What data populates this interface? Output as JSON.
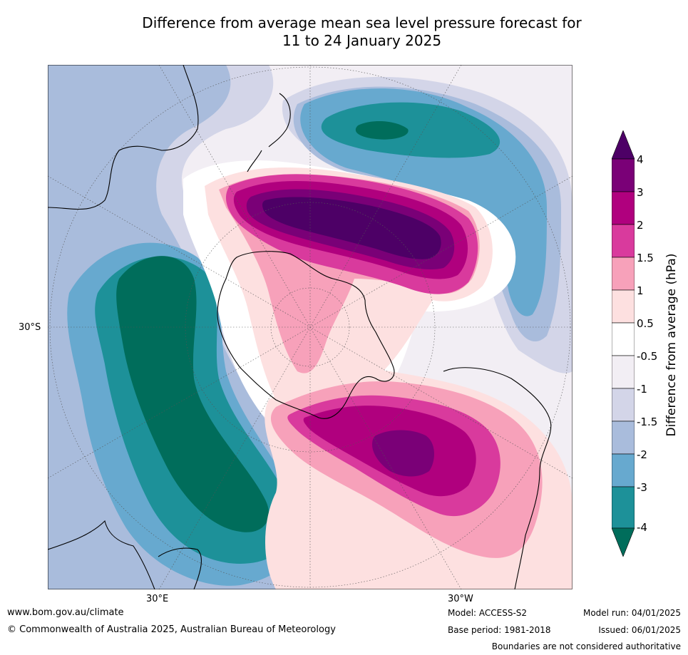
{
  "title": {
    "line1": "Difference from average mean sea level pressure forecast for",
    "line2": "11 to 24 January 2025"
  },
  "map": {
    "lat_labels": [
      {
        "text": "30°S"
      }
    ],
    "lon_labels": [
      {
        "text": "30°E"
      },
      {
        "text": "30°W"
      }
    ]
  },
  "colorbar": {
    "label": "Difference from average (hPa)",
    "ticks": [
      "4",
      "3",
      "2",
      "1.5",
      "1",
      "0.5",
      "-0.5",
      "-1",
      "-1.5",
      "-2",
      "-3",
      "-4"
    ],
    "colors": {
      "gt4": "#4d0066",
      "3to4": "#7a0077",
      "2to3": "#b0007e",
      "1.5to2": "#d93a9d",
      "1to1.5": "#f7a1ba",
      "0.5to1": "#fde0e0",
      "neutral": "#ffffff",
      "-1to-0.5": "#f2eef4",
      "-1.5to-1": "#d3d5e8",
      "-2to-1.5": "#a9bcdc",
      "-3to-2": "#67a9cf",
      "-4to-3": "#1d9199",
      "lt-4": "#006d5b"
    }
  },
  "footer": {
    "website": "www.bom.gov.au/climate",
    "copyright": "© Commonwealth of Australia 2025, Australian Bureau of Meteorology",
    "model": "Model: ACCESS-S2",
    "base_period": "Base period: 1981-2018",
    "model_run": "Model run: 04/01/2025",
    "issued": "Issued: 06/01/2025",
    "disclaimer": "Boundaries are not considered authoritative"
  }
}
